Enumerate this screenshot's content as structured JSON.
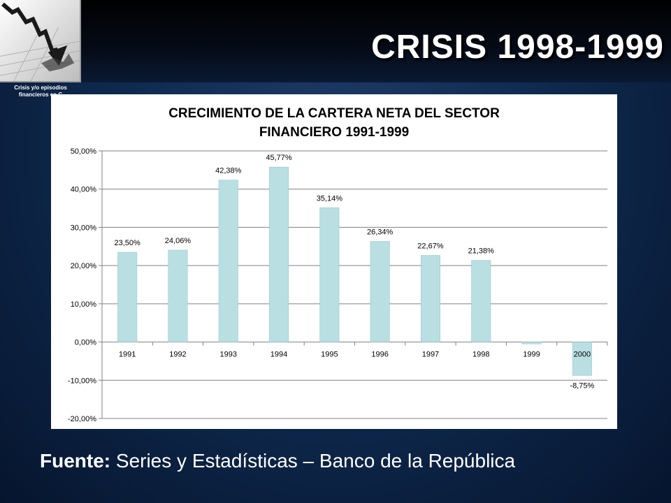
{
  "slide": {
    "title": "CRISIS 1998-1999",
    "logo_caption_line1": "Crisis y/o episodios",
    "logo_caption_line2": "financieros en C",
    "source_label": "Fuente:",
    "source_text": " Series y Estadísticas – Banco de la República"
  },
  "colors": {
    "bar": "#b9dfe2",
    "bar_stroke": "#8fc3c8",
    "grid": "#808080",
    "axis_text": "#000000"
  },
  "chart_data": {
    "type": "bar",
    "title_line1": "CRECIMIENTO DE LA CARTERA NETA DEL SECTOR",
    "title_line2": "FINANCIERO 1991-1999",
    "categories": [
      "1991",
      "1992",
      "1993",
      "1994",
      "1995",
      "1996",
      "1997",
      "1998",
      "1999",
      "2000"
    ],
    "values": [
      23.5,
      24.06,
      42.38,
      45.77,
      35.14,
      26.34,
      22.67,
      21.38,
      -0.5,
      -8.75
    ],
    "data_labels": [
      "23,50%",
      "24,06%",
      "42,38%",
      "45,77%",
      "35,14%",
      "26,34%",
      "22,67%",
      "21,38%",
      "",
      "-8,75%"
    ],
    "yticks": [
      50,
      40,
      30,
      20,
      10,
      0,
      -10,
      -20
    ],
    "ytick_labels": [
      "50,00%",
      "40,00%",
      "30,00%",
      "20,00%",
      "10,00%",
      "0,00%",
      "-10,00%",
      "-20,00%"
    ],
    "ylim": [
      -20,
      50
    ],
    "grid": true,
    "legend": "none"
  }
}
